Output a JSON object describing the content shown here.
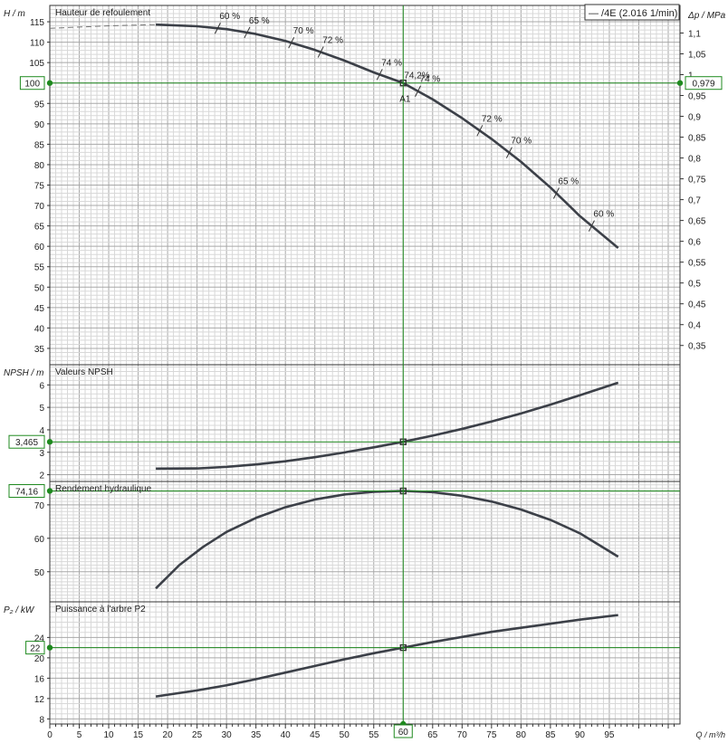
{
  "chart_data": {
    "type": "line",
    "legend": "— /4E (2.016 1/min)",
    "x_axis": {
      "label": "Q / m³/h",
      "ticks": [
        "0",
        "5",
        "10",
        "15",
        "20",
        "25",
        "30",
        "35",
        "40",
        "45",
        "50",
        "55",
        "60",
        "65",
        "70",
        "75",
        "80",
        "85",
        "90",
        "95"
      ],
      "range": [
        0,
        107
      ],
      "marker": "60"
    },
    "operating_point": {
      "q": 60,
      "label": "A1",
      "efficiency_label": "74,2%"
    },
    "panels": [
      {
        "id": "head",
        "title": "Hauteur de refoulement",
        "ylabel": "H / m",
        "ylim": [
          31,
          119
        ],
        "yticks": [
          "35",
          "40",
          "45",
          "50",
          "55",
          "60",
          "65",
          "70",
          "75",
          "80",
          "85",
          "90",
          "95",
          "100",
          "105",
          "110",
          "115"
        ],
        "right_label": "Δp / MPa",
        "right_ticks": [
          "0,35",
          "0,4",
          "0,45",
          "0,5",
          "0,55",
          "0,6",
          "0,65",
          "0,7",
          "0,75",
          "0,8",
          "0,85",
          "0,9",
          "0,95",
          "1",
          "1,05",
          "1,1"
        ],
        "marker": "100",
        "right_marker": "0,979",
        "dashed_curve": {
          "x": [
            0,
            5,
            10,
            15,
            18
          ],
          "y": [
            113.4,
            113.7,
            114.0,
            114.2,
            114.3
          ]
        },
        "curve": {
          "x": [
            18,
            20,
            25,
            30,
            35,
            40,
            45,
            50,
            55,
            60,
            65,
            70,
            75,
            80,
            85,
            90,
            96.5
          ],
          "y": [
            114.3,
            114.2,
            113.9,
            113.2,
            112.0,
            110.3,
            108.1,
            105.5,
            102.6,
            100.0,
            96.0,
            91.4,
            86.3,
            80.7,
            74.4,
            67.4,
            59.6
          ]
        },
        "efficiency_labels": [
          {
            "q": 28.5,
            "text": "60 %"
          },
          {
            "q": 33.5,
            "text": "65 %"
          },
          {
            "q": 41,
            "text": "70 %"
          },
          {
            "q": 46,
            "text": "72 %"
          },
          {
            "q": 56,
            "text": "74 %"
          },
          {
            "q": 62.5,
            "text": "74 %"
          },
          {
            "q": 73,
            "text": "72 %"
          },
          {
            "q": 78,
            "text": "70 %"
          },
          {
            "q": 86,
            "text": "65 %"
          },
          {
            "q": 92,
            "text": "60 %"
          }
        ]
      },
      {
        "id": "npsh",
        "title": "Valeurs NPSH",
        "ylabel": "NPSH / m",
        "ylim": [
          1.7,
          6.9
        ],
        "yticks": [
          "2",
          "3",
          "4",
          "5",
          "6"
        ],
        "marker": "3,465",
        "curve": {
          "x": [
            18,
            25,
            30,
            35,
            40,
            45,
            50,
            55,
            60,
            65,
            70,
            75,
            80,
            85,
            90,
            96.5
          ],
          "y": [
            2.27,
            2.28,
            2.35,
            2.46,
            2.6,
            2.78,
            2.99,
            3.22,
            3.465,
            3.74,
            4.04,
            4.37,
            4.73,
            5.12,
            5.54,
            6.1
          ]
        }
      },
      {
        "id": "efficiency",
        "title": "Rendement hydraulique",
        "ylabel": "",
        "ylim": [
          41,
          77
        ],
        "yticks": [
          "50",
          "60",
          "70"
        ],
        "marker": "74,16",
        "curve": {
          "x": [
            18,
            22,
            26,
            30,
            35,
            40,
            45,
            50,
            55,
            60,
            65,
            70,
            75,
            80,
            85,
            90,
            96.5
          ],
          "y": [
            45.0,
            52.0,
            57.4,
            61.9,
            66.1,
            69.3,
            71.6,
            73.1,
            73.9,
            74.16,
            73.8,
            72.7,
            71.0,
            68.6,
            65.5,
            61.5,
            54.5
          ]
        }
      },
      {
        "id": "power",
        "title": "Puissance à l'arbre P2",
        "ylabel": "P₂ / kW",
        "ylim": [
          7,
          31
        ],
        "yticks": [
          "8",
          "12",
          "16",
          "20",
          "22",
          "24"
        ],
        "marker": "22",
        "curve": {
          "x": [
            18,
            25,
            30,
            35,
            40,
            45,
            50,
            55,
            60,
            65,
            70,
            75,
            80,
            85,
            90,
            96.5
          ],
          "y": [
            12.4,
            13.6,
            14.6,
            15.8,
            17.1,
            18.4,
            19.7,
            20.9,
            22.0,
            23.1,
            24.1,
            25.1,
            25.9,
            26.7,
            27.5,
            28.4
          ]
        }
      }
    ],
    "colors": {
      "curve": "#3c4048",
      "operating": "#1f8a1f",
      "grid_minor": "#d8d8d8",
      "grid_major": "#a8a8a8"
    }
  }
}
